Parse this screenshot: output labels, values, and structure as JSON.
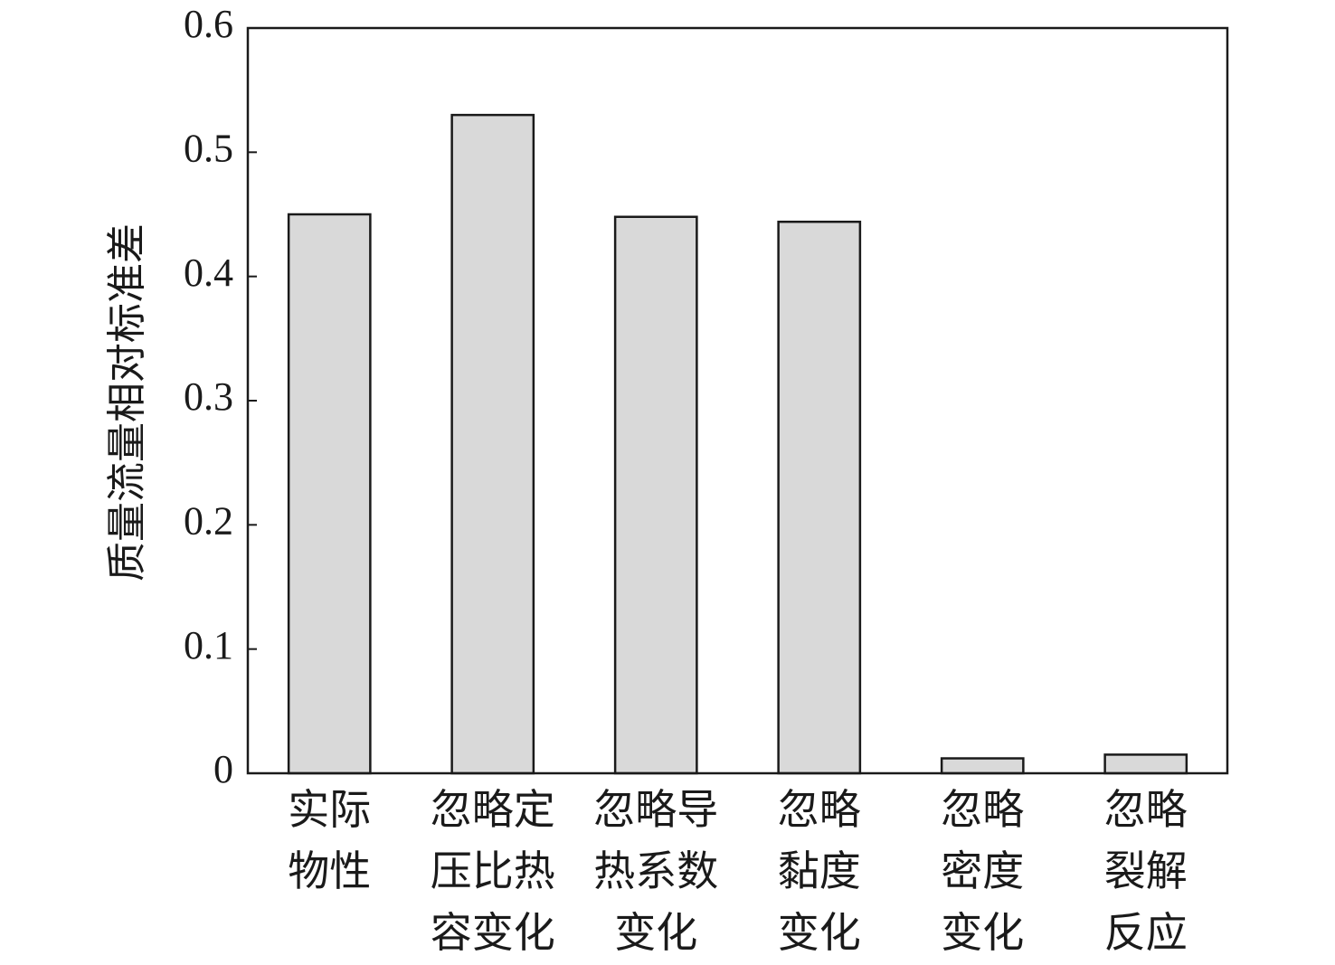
{
  "chart_data": {
    "type": "bar",
    "y_label": "质量流量相对标准差",
    "categories": [
      "实际\n物性",
      "忽略定\n压比热\n容变化",
      "忽略导\n热系数\n变化",
      "忽略\n黏度\n变化",
      "忽略\n密度\n变化",
      "忽略\n裂解\n反应"
    ],
    "values": [
      0.45,
      0.53,
      0.448,
      0.444,
      0.012,
      0.015
    ],
    "color": "#d9d9d9",
    "ylim": [
      0,
      0.6
    ],
    "yticks": [
      0,
      0.1,
      0.2,
      0.3,
      0.4,
      0.5,
      0.6
    ],
    "grid": false
  }
}
